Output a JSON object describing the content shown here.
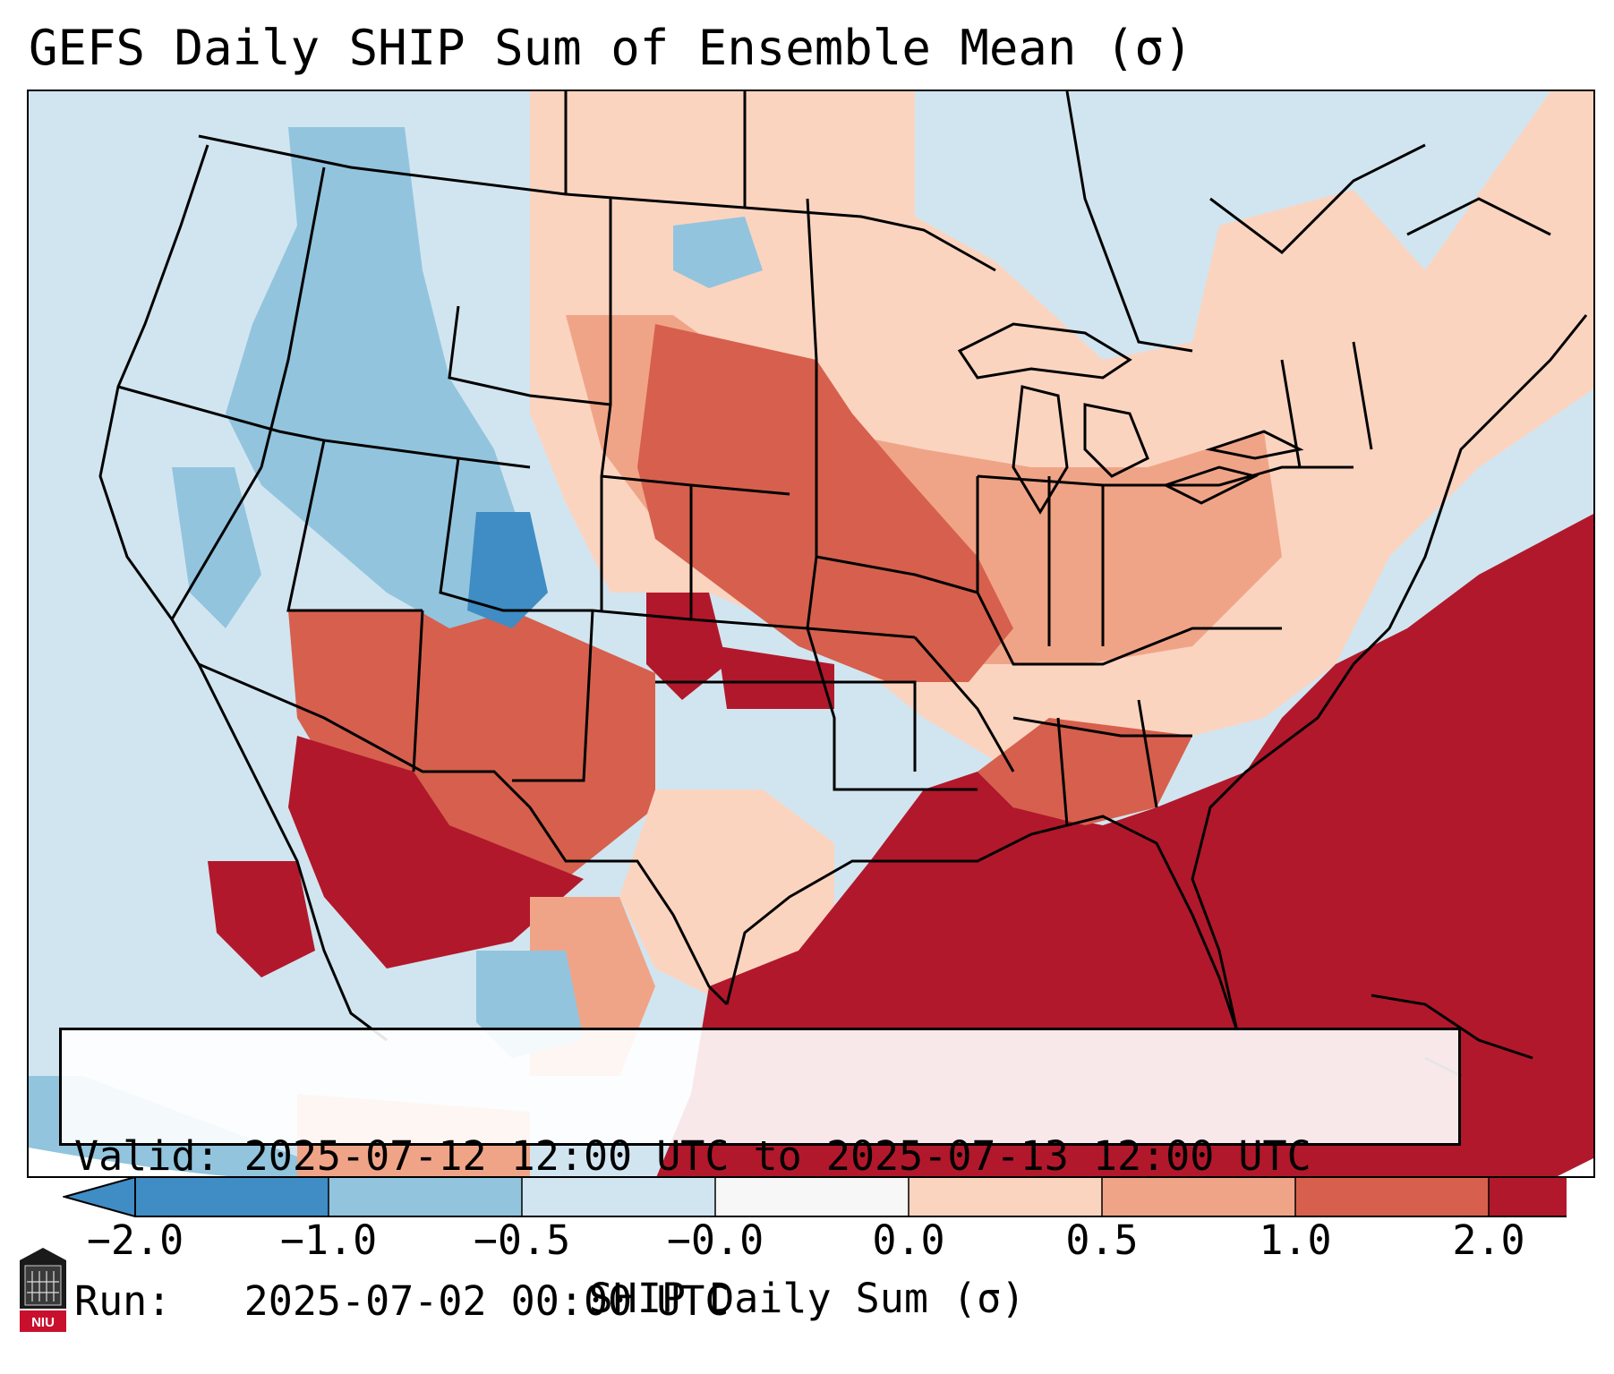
{
  "title": "GEFS Daily SHIP Sum of Ensemble Mean (σ)",
  "info": {
    "valid_line": "Valid: 2025-07-12 12:00 UTC to 2025-07-13 12:00 UTC",
    "run_line": "Run:   2025-07-02 00:00 UTC"
  },
  "colorbar": {
    "label": "SHIP Daily Sum (σ)",
    "ticks": [
      "−2.0",
      "−1.0",
      "−0.5",
      "−0.0",
      "0.0",
      "0.5",
      "1.0",
      "2.0"
    ],
    "colors": [
      "#3f8dc4",
      "#92c4de",
      "#d1e5f0",
      "#f7f7f7",
      "#fbd4c0",
      "#f0a487",
      "#d6604d",
      "#b2182b"
    ],
    "extend": "both"
  },
  "map": {
    "region": "Contiguous United States",
    "projection": "Lambert conformal",
    "fill_colors": {
      "ocean_neutral": "#d1e5f0",
      "strong_positive": "#b2182b",
      "positive": "#d6604d",
      "weak_positive": "#f0a487",
      "slight_positive": "#fbd4c0",
      "slight_negative": "#d1e5f0",
      "negative": "#92c4de",
      "strong_negative": "#3f8dc4"
    }
  },
  "logo": {
    "text": "NIU"
  }
}
